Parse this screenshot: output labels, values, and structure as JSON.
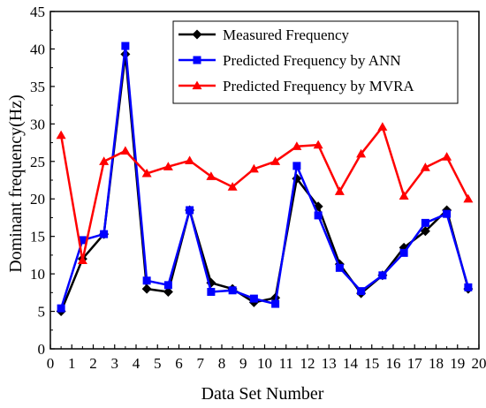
{
  "chart_data": {
    "type": "line",
    "title": "",
    "xlabel": "Data Set Number",
    "ylabel": "Dominant frequency(Hz)",
    "xlim": [
      0,
      20
    ],
    "ylim": [
      0,
      45
    ],
    "x_ticks": [
      0,
      1,
      2,
      3,
      4,
      5,
      6,
      7,
      8,
      9,
      10,
      11,
      12,
      13,
      14,
      15,
      16,
      17,
      18,
      19,
      20
    ],
    "y_ticks": [
      0,
      5,
      10,
      15,
      20,
      25,
      30,
      35,
      40,
      45
    ],
    "grid": false,
    "legend_position": "top-right",
    "series": [
      {
        "name": "Measured Frequency",
        "color": "#000000",
        "marker": "diamond",
        "x": [
          0.5,
          1.5,
          2.5,
          3.5,
          4.5,
          5.5,
          6.5,
          7.5,
          8.5,
          9.5,
          10.5,
          11.5,
          12.5,
          13.5,
          14.5,
          15.5,
          16.5,
          17.5,
          18.5,
          19.5
        ],
        "values": [
          5.0,
          12.0,
          15.3,
          39.3,
          8.0,
          7.6,
          18.5,
          8.8,
          8.0,
          6.2,
          6.8,
          22.7,
          19.0,
          11.3,
          7.4,
          9.8,
          13.5,
          15.7,
          18.5,
          8.0
        ]
      },
      {
        "name": "Predicted Frequency by ANN",
        "color": "#0000ff",
        "marker": "square",
        "x": [
          0.5,
          1.5,
          2.5,
          3.5,
          4.5,
          5.5,
          6.5,
          7.5,
          8.5,
          9.5,
          10.5,
          11.5,
          12.5,
          13.5,
          14.5,
          15.5,
          16.5,
          17.5,
          18.5,
          19.5
        ],
        "values": [
          5.4,
          14.5,
          15.3,
          40.4,
          9.1,
          8.5,
          18.5,
          7.6,
          7.8,
          6.7,
          6.0,
          24.4,
          17.8,
          10.8,
          7.7,
          9.8,
          12.8,
          16.8,
          18.0,
          8.2
        ]
      },
      {
        "name": "Predicted Frequency by MVRA",
        "color": "#ff0000",
        "marker": "triangle",
        "x": [
          0.5,
          1.5,
          2.5,
          3.5,
          4.5,
          5.5,
          6.5,
          7.5,
          8.5,
          9.5,
          10.5,
          11.5,
          12.5,
          13.5,
          14.5,
          15.5,
          16.5,
          17.5,
          18.5,
          19.5
        ],
        "values": [
          28.5,
          11.8,
          25.0,
          26.4,
          23.4,
          24.3,
          25.1,
          23.0,
          21.6,
          24.0,
          25.0,
          27.0,
          27.2,
          21.0,
          26.0,
          29.6,
          20.4,
          24.2,
          25.6,
          20.0
        ]
      }
    ]
  }
}
